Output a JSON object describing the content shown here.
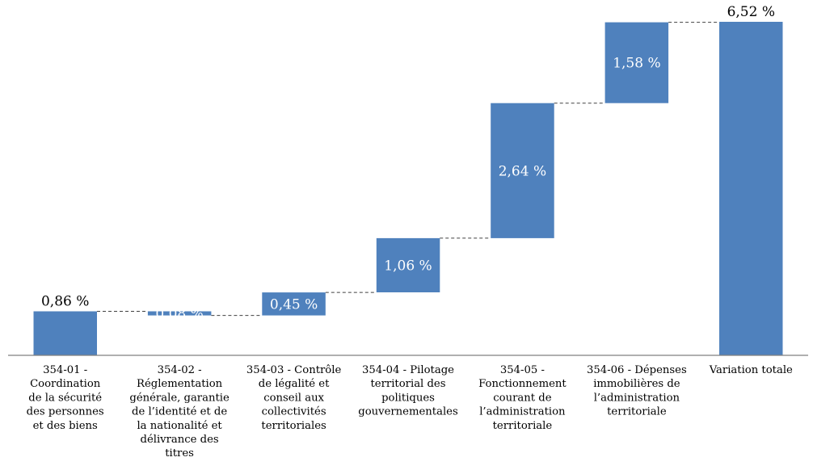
{
  "chart_data": {
    "type": "bar",
    "subtype": "waterfall",
    "title": "",
    "xlabel": "",
    "ylabel": "",
    "ylim": [
      0,
      6.8
    ],
    "grid": false,
    "legend": "none",
    "bar_color": "#4f81bd",
    "categories": [
      "354-01 - Coordination de la sécurité des personnes et des biens",
      "354-02 - Réglementation générale, garantie de l’identité et de la nationalité et délivrance des titres",
      "354-03 - Contrôle de légalité et conseil aux collectivités territoriales",
      "354-04 - Pilotage territorial des politiques gouvernementales",
      "354-05 - Fonctionnement courant de l’administration territoriale",
      "354-06 - Dépenses immobilières de l’administration territoriale",
      "Variation totale"
    ],
    "category_lines": [
      [
        "354-01 -",
        "Coordination",
        "de la sécurité",
        "des personnes",
        "et des biens"
      ],
      [
        "354-02 -",
        "Réglementation",
        "générale, garantie",
        "de l’identité et de",
        "la nationalité et",
        "délivrance des",
        "titres"
      ],
      [
        "354-03 - Contrôle",
        "de légalité et",
        "conseil aux",
        "collectivités",
        "territoriales"
      ],
      [
        "354-04 - Pilotage",
        "territorial des",
        "politiques",
        "gouvernementales"
      ],
      [
        "354-05 -",
        "Fonctionnement",
        "courant de",
        "l’administration",
        "territoriale"
      ],
      [
        "354-06 - Dépenses",
        "immobilières de",
        "l’administration",
        "territoriale"
      ],
      [
        "Variation totale"
      ]
    ],
    "values": [
      0.86,
      -0.08,
      0.45,
      1.06,
      2.64,
      1.58,
      6.52
    ],
    "start": [
      0,
      0.86,
      0.78,
      1.23,
      2.29,
      4.93,
      0
    ],
    "end": [
      0.86,
      0.78,
      1.23,
      2.29,
      4.93,
      6.51,
      6.52
    ],
    "data_labels": [
      "0,86 %",
      "0,08 %",
      "0,45 %",
      "1,06 %",
      "2,64 %",
      "1,58 %",
      "6,52 %"
    ],
    "label_position": [
      "above",
      "inside",
      "inside",
      "inside",
      "inside",
      "inside",
      "above"
    ]
  }
}
